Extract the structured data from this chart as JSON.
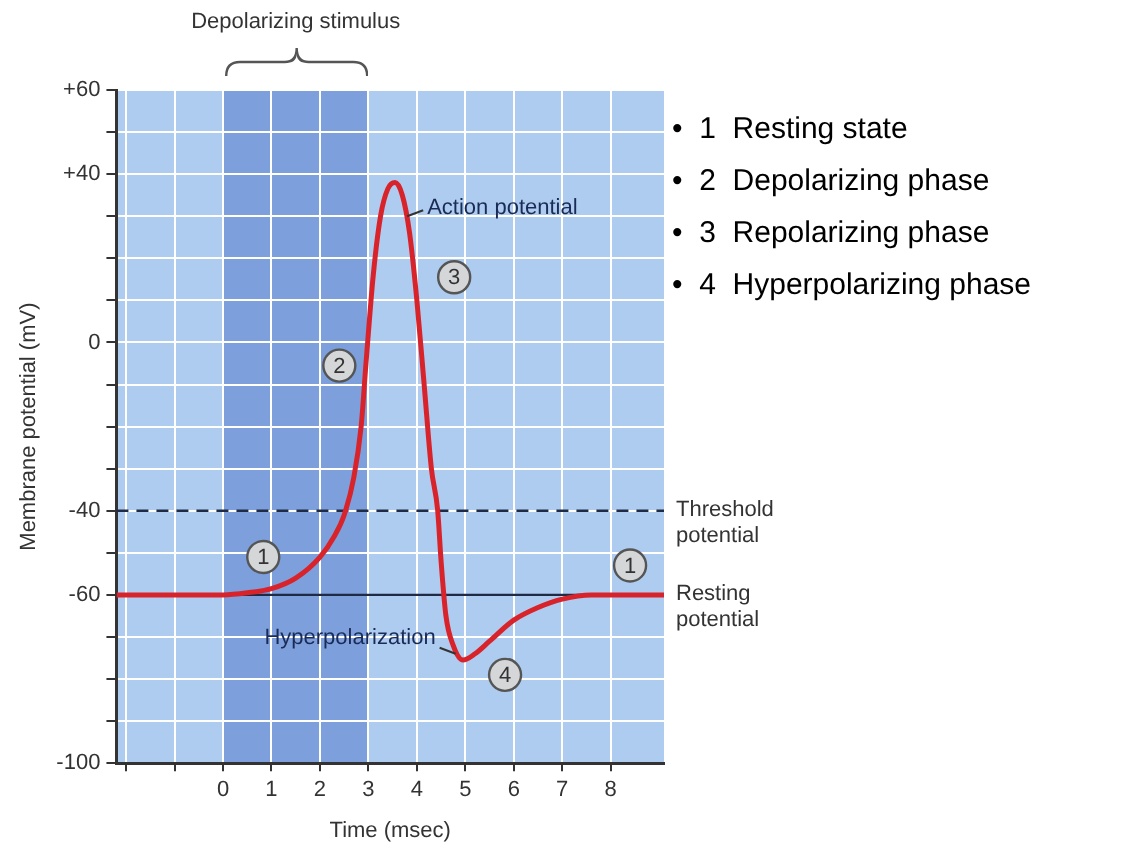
{
  "chart_data": {
    "type": "line",
    "xlabel": "Time (msec)",
    "ylabel": "Membrane potential (mV)",
    "x": [
      -2.2,
      -1,
      0,
      0.5,
      1,
      1.5,
      2,
      2.3,
      2.5,
      2.7,
      2.85,
      2.95,
      3.1,
      3.25,
      3.4,
      3.55,
      3.7,
      3.85,
      4.0,
      4.15,
      4.3,
      4.43,
      4.5,
      4.6,
      4.75,
      4.95,
      5.2,
      5.5,
      6.0,
      6.5,
      7.0,
      7.6,
      8.0,
      9.1
    ],
    "series": [
      {
        "color": "#d9232b",
        "values": [
          -60,
          -60,
          -60,
          -59.5,
          -58.5,
          -56,
          -51,
          -46,
          -41,
          -32,
          -20,
          -5,
          16,
          30,
          36.5,
          38,
          35,
          26,
          10,
          -10,
          -30,
          -40,
          -52,
          -65,
          -72,
          -75.5,
          -74,
          -71,
          -66,
          -63,
          -61,
          -60,
          -60,
          -60
        ]
      }
    ],
    "xlim": [
      -2.2,
      9.1
    ],
    "ylim": [
      -100,
      60
    ],
    "xticks": [
      {
        "value": -2,
        "label": null
      },
      {
        "value": -1,
        "label": null
      },
      0,
      1,
      2,
      3,
      4,
      5,
      6,
      7,
      8
    ],
    "yticks": [
      -100,
      {
        "value": -90,
        "label": null
      },
      {
        "value": -80,
        "label": null
      },
      {
        "value": -70,
        "label": null
      },
      -60,
      {
        "value": -50,
        "label": null
      },
      -40,
      {
        "value": -30,
        "label": null
      },
      {
        "value": -20,
        "label": null
      },
      {
        "value": -10,
        "label": null
      },
      0,
      {
        "value": 10,
        "label": null
      },
      {
        "value": 20,
        "label": null
      },
      {
        "value": 30,
        "label": null
      },
      {
        "value": 40,
        "label": "+40"
      },
      {
        "value": 50,
        "label": null
      },
      {
        "value": 60,
        "label": "+60"
      }
    ],
    "grid": true,
    "marker": "none",
    "line_style": "solid",
    "bands": [
      {
        "axis": "x",
        "from": 0,
        "to": 3,
        "label": "Depolarizing stimulus",
        "color": "#7d9fdc"
      }
    ],
    "ref_lines": [
      {
        "axis": "y",
        "value": -40,
        "label": "Threshold potential",
        "line_style": "dashed",
        "color": "#1f2a44"
      },
      {
        "axis": "y",
        "value": -60,
        "label": "Resting potential",
        "line_style": "solid",
        "color": "#1f2a44"
      }
    ],
    "annotations": [
      {
        "text": "Action potential",
        "x": 3.8,
        "y": 30
      },
      {
        "text": "Hyperpolarization",
        "x": 4.8,
        "y": -74
      },
      {
        "text": "1",
        "x": 0.83,
        "y": -51
      },
      {
        "text": "2",
        "x": 2.4,
        "y": -5.5
      },
      {
        "text": "3",
        "x": 4.77,
        "y": 15.5
      },
      {
        "text": "4",
        "x": 5.82,
        "y": -79
      },
      {
        "text": "1",
        "x": 8.4,
        "y": -53
      },
      "•  1  Resting state",
      "•  2  Depolarizing phase",
      "•  3  Repolarizing phase",
      "•  4  Hyperpolarizing phase"
    ]
  }
}
